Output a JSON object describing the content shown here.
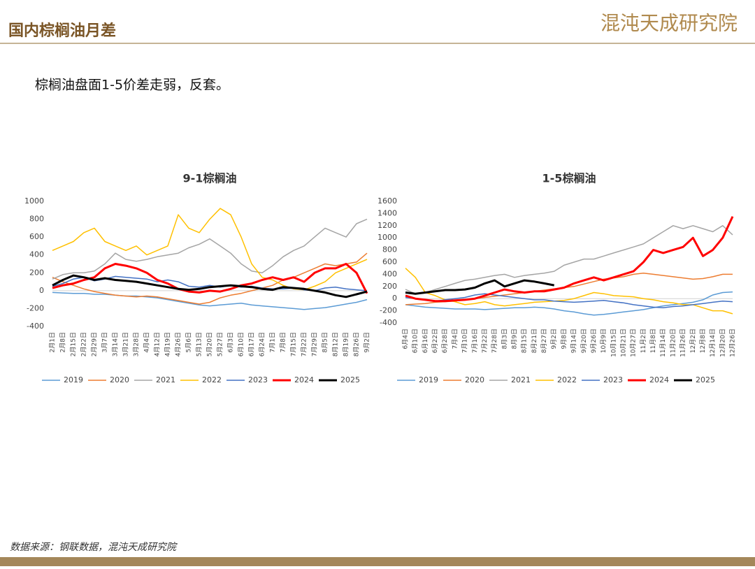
{
  "header": {
    "title": "国内棕榈油月差",
    "logo": "混沌天成研究院"
  },
  "subtitle": "棕榈油盘面1-5价差走弱，反套。",
  "source": "数据来源：钢联数据，混沌天成研究院",
  "chart_data": [
    {
      "type": "line",
      "title": "9-1棕榈油",
      "categories": [
        "2月1日",
        "2月8日",
        "2月15日",
        "2月22日",
        "2月29日",
        "3月7日",
        "3月14日",
        "3月21日",
        "3月28日",
        "4月4日",
        "4月12日",
        "4月19日",
        "4月26日",
        "5月6日",
        "5月13日",
        "5月20日",
        "5月27日",
        "6月3日",
        "6月10日",
        "6月17日",
        "6月24日",
        "7月1日",
        "7月8日",
        "7月15日",
        "7月22日",
        "7月29日",
        "8月5日",
        "8月12日",
        "8月19日",
        "8月26日",
        "9月2日"
      ],
      "ylim": [
        -400,
        1000
      ],
      "yticks": [
        -400,
        -200,
        0,
        200,
        400,
        600,
        800,
        1000
      ],
      "series": [
        {
          "name": "2019",
          "color": "#5b9bd5",
          "line_width": 1.5,
          "values": [
            -20,
            -25,
            -30,
            -30,
            -40,
            -40,
            -50,
            -60,
            -60,
            -70,
            -80,
            -100,
            -120,
            -140,
            -160,
            -170,
            -160,
            -150,
            -140,
            -160,
            -170,
            -180,
            -190,
            -200,
            -210,
            -200,
            -190,
            -170,
            -150,
            -130,
            -100
          ]
        },
        {
          "name": "2020",
          "color": "#ed7d31",
          "line_width": 1.5,
          "values": [
            150,
            100,
            60,
            20,
            -10,
            -30,
            -50,
            -60,
            -70,
            -60,
            -70,
            -90,
            -110,
            -130,
            -150,
            -130,
            -80,
            -50,
            -30,
            0,
            30,
            60,
            120,
            150,
            200,
            250,
            300,
            280,
            300,
            320,
            420
          ]
        },
        {
          "name": "2021",
          "color": "#a5a5a5",
          "line_width": 1.5,
          "values": [
            130,
            180,
            200,
            200,
            220,
            300,
            420,
            350,
            330,
            350,
            380,
            400,
            420,
            480,
            520,
            580,
            500,
            420,
            300,
            220,
            200,
            280,
            380,
            450,
            500,
            600,
            700,
            650,
            600,
            750,
            800
          ]
        },
        {
          "name": "2022",
          "color": "#ffc000",
          "line_width": 1.5,
          "values": [
            450,
            500,
            550,
            650,
            700,
            550,
            500,
            450,
            500,
            400,
            450,
            500,
            850,
            700,
            650,
            800,
            920,
            850,
            600,
            300,
            150,
            120,
            60,
            20,
            10,
            50,
            100,
            200,
            250,
            300,
            350
          ]
        },
        {
          "name": "2023",
          "color": "#4472c4",
          "line_width": 1.5,
          "values": [
            50,
            80,
            130,
            150,
            110,
            130,
            160,
            150,
            140,
            130,
            100,
            120,
            100,
            50,
            40,
            60,
            40,
            60,
            40,
            50,
            30,
            20,
            20,
            30,
            10,
            0,
            30,
            40,
            20,
            10,
            0
          ]
        },
        {
          "name": "2024",
          "color": "#ff0000",
          "line_width": 3,
          "values": [
            30,
            60,
            80,
            120,
            150,
            250,
            300,
            280,
            250,
            200,
            120,
            80,
            20,
            -10,
            -20,
            0,
            -10,
            20,
            60,
            80,
            120,
            150,
            120,
            150,
            100,
            200,
            250,
            250,
            300,
            200,
            -30
          ]
        },
        {
          "name": "2025",
          "color": "#000000",
          "line_width": 3,
          "values": [
            60,
            120,
            170,
            150,
            120,
            140,
            120,
            110,
            100,
            80,
            60,
            40,
            20,
            10,
            20,
            40,
            50,
            60,
            50,
            40,
            20,
            10,
            40,
            30,
            20,
            0,
            -20,
            -50,
            -70,
            -40,
            -10
          ]
        }
      ]
    },
    {
      "type": "line",
      "title": "1-5棕榈油",
      "categories": [
        "6月4日",
        "6月10日",
        "6月16日",
        "6月22日",
        "6月28日",
        "7月4日",
        "7月10日",
        "7月16日",
        "7月22日",
        "7月28日",
        "8月3日",
        "8月9日",
        "8月15日",
        "8月21日",
        "8月27日",
        "9月2日",
        "9月8日",
        "9月14日",
        "9月20日",
        "9月26日",
        "10月9日",
        "10月15日",
        "10月21日",
        "10月27日",
        "11月2日",
        "11月8日",
        "11月14日",
        "11月20日",
        "11月26日",
        "12月2日",
        "12月8日",
        "12月14日",
        "12月20日",
        "12月26日"
      ],
      "ylim": [
        -400,
        1600
      ],
      "yticks": [
        -400,
        -200,
        0,
        200,
        400,
        600,
        800,
        1000,
        1200,
        1400,
        1600
      ],
      "series": [
        {
          "name": "2019",
          "color": "#5b9bd5",
          "line_width": 1.5,
          "values": [
            -100,
            -120,
            -140,
            -150,
            -160,
            -170,
            -170,
            -170,
            -180,
            -170,
            -160,
            -150,
            -150,
            -140,
            -150,
            -170,
            -200,
            -220,
            -250,
            -270,
            -260,
            -240,
            -220,
            -200,
            -180,
            -150,
            -120,
            -100,
            -80,
            -60,
            -20,
            60,
            100,
            110
          ]
        },
        {
          "name": "2020",
          "color": "#ed7d31",
          "line_width": 1.5,
          "values": [
            -100,
            -90,
            -80,
            -60,
            -50,
            -40,
            -20,
            0,
            20,
            40,
            60,
            80,
            100,
            120,
            140,
            160,
            180,
            200,
            240,
            280,
            320,
            340,
            360,
            400,
            420,
            400,
            380,
            360,
            340,
            320,
            330,
            360,
            400,
            400
          ]
        },
        {
          "name": "2021",
          "color": "#a5a5a5",
          "line_width": 1.5,
          "values": [
            150,
            80,
            100,
            150,
            200,
            250,
            300,
            320,
            350,
            380,
            400,
            350,
            380,
            400,
            420,
            450,
            550,
            600,
            650,
            650,
            700,
            750,
            800,
            850,
            900,
            1000,
            1100,
            1200,
            1150,
            1200,
            1150,
            1100,
            1200,
            1050
          ]
        },
        {
          "name": "2022",
          "color": "#ffc000",
          "line_width": 1.5,
          "values": [
            500,
            350,
            100,
            50,
            -20,
            -50,
            -100,
            -80,
            -50,
            -100,
            -120,
            -100,
            -80,
            -60,
            -50,
            -40,
            -30,
            0,
            50,
            100,
            80,
            50,
            40,
            30,
            0,
            -20,
            -50,
            -70,
            -100,
            -100,
            -150,
            -200,
            -200,
            -250
          ]
        },
        {
          "name": "2023",
          "color": "#4472c4",
          "line_width": 1.5,
          "values": [
            20,
            0,
            -20,
            -40,
            -20,
            0,
            20,
            60,
            80,
            60,
            40,
            20,
            0,
            -20,
            -20,
            -40,
            -50,
            -60,
            -50,
            -40,
            -30,
            -50,
            -70,
            -100,
            -120,
            -140,
            -150,
            -130,
            -120,
            -100,
            -80,
            -60,
            -40,
            -50
          ]
        },
        {
          "name": "2024",
          "color": "#ff0000",
          "line_width": 3,
          "values": [
            50,
            0,
            -20,
            -40,
            -40,
            -30,
            -20,
            0,
            50,
            100,
            150,
            120,
            100,
            120,
            120,
            150,
            180,
            250,
            300,
            350,
            300,
            350,
            400,
            450,
            600,
            800,
            750,
            800,
            850,
            1000,
            700,
            800,
            1000,
            1350
          ]
        },
        {
          "name": "2025",
          "color": "#000000",
          "line_width": 3,
          "values": [
            100,
            80,
            100,
            120,
            140,
            140,
            150,
            180,
            250,
            300,
            200,
            250,
            300,
            280,
            250,
            220,
            null,
            null,
            null,
            null,
            null,
            null,
            null,
            null,
            null,
            null,
            null,
            null,
            null,
            null,
            null,
            null,
            null,
            null
          ]
        }
      ]
    }
  ]
}
